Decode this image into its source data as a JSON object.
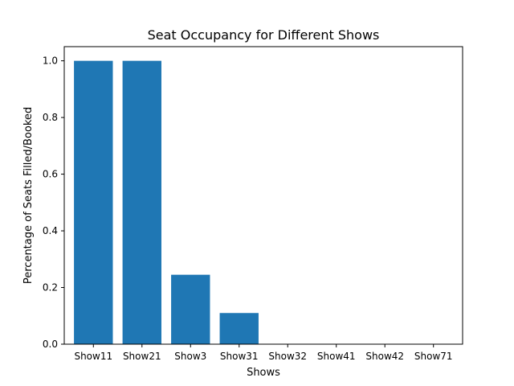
{
  "chart_data": {
    "type": "bar",
    "title": "Seat Occupancy for Different Shows",
    "xlabel": "Shows",
    "ylabel": "Percentage of Seats Filled/Booked",
    "categories": [
      "Show11",
      "Show21",
      "Show3",
      "Show31",
      "Show32",
      "Show41",
      "Show42",
      "Show71"
    ],
    "values": [
      1.0,
      1.0,
      0.245,
      0.11,
      0.0,
      0.0,
      0.0,
      0.0
    ],
    "ylim": [
      0,
      1.05
    ],
    "yticks": [
      0.0,
      0.2,
      0.4,
      0.6,
      0.8,
      1.0
    ],
    "ytick_labels": [
      "0.0",
      "0.2",
      "0.4",
      "0.6",
      "0.8",
      "1.0"
    ],
    "grid": false,
    "colors": {
      "bar": "#1f77b4",
      "axis": "#000000",
      "background": "#ffffff"
    }
  }
}
